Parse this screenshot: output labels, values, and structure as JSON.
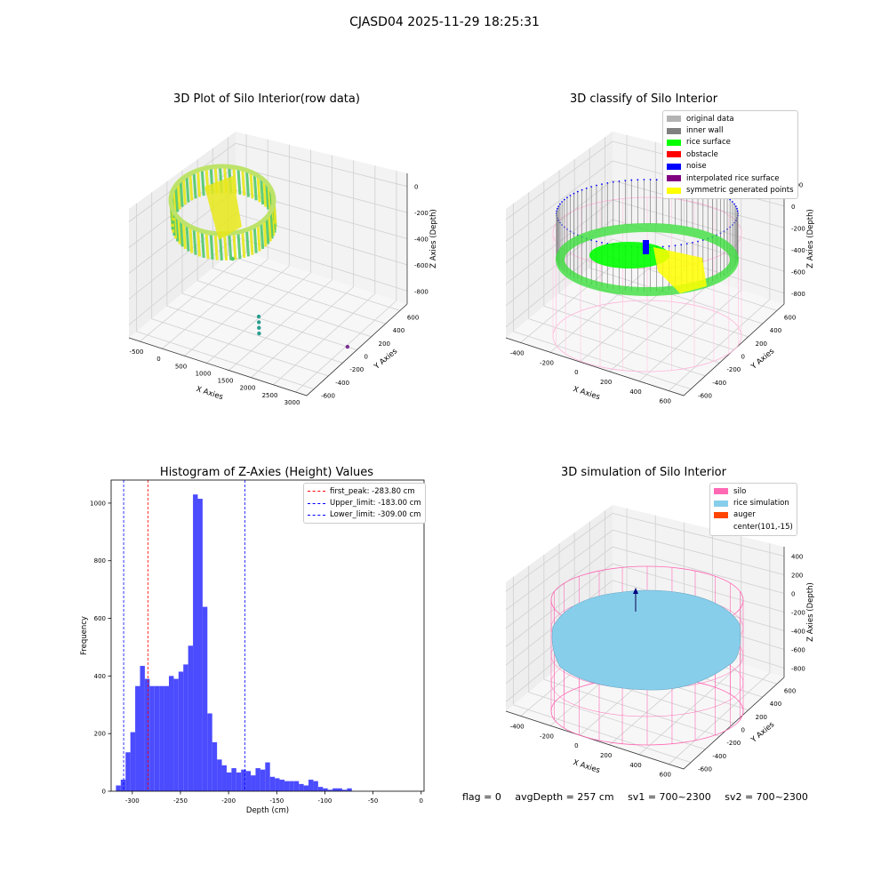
{
  "figure": {
    "suptitle": "CJASD04 2025-11-29 18:25:31"
  },
  "status": {
    "flag": "flag = 0",
    "avg_depth": "avgDepth = 257 cm",
    "sv1": "sv1 = 700~2300",
    "sv2": "sv2 = 700~2300"
  },
  "chart_data": [
    {
      "type": "scatter",
      "projection": "3d",
      "title": "3D Plot of Silo Interior(row data)",
      "xlabel": "X Axies",
      "ylabel": "Y Axies",
      "zlabel": "Z Axies (Depth)",
      "x_ticks": [
        "-500",
        "0",
        "500",
        "1000",
        "1500",
        "2000",
        "2500",
        "3000"
      ],
      "y_ticks": [
        "-600",
        "-400",
        "-200",
        "0",
        "200",
        "400",
        "600"
      ],
      "z_ticks": [
        "0",
        "-200",
        "-400",
        "-600",
        "-800"
      ],
      "grid": true,
      "colors": {
        "low": "#2a9d8f",
        "high": "#e8e81a",
        "outlier": "#7b3294",
        "mid": "#4fc96b"
      },
      "outliers": [
        {
          "x": 800,
          "y": 200,
          "z": -400
        },
        {
          "x": 1500,
          "y": 300,
          "z": -700
        },
        {
          "x": 1500,
          "y": 300,
          "z": -740
        },
        {
          "x": 1500,
          "y": 300,
          "z": -780
        },
        {
          "x": 1500,
          "y": 300,
          "z": -820
        },
        {
          "x": 2900,
          "y": 0,
          "z": -900
        }
      ]
    },
    {
      "type": "scatter",
      "projection": "3d",
      "title": "3D classify of Silo Interior",
      "xlabel": "X Axies",
      "ylabel": "Y Axies",
      "zlabel": "Z Axies (Depth)",
      "x_ticks": [
        "-400",
        "-200",
        "0",
        "200",
        "400",
        "600"
      ],
      "y_ticks": [
        "-600",
        "-400",
        "-200",
        "0",
        "200",
        "400",
        "600"
      ],
      "z_ticks": [
        "200",
        "0",
        "-200",
        "-400",
        "-600",
        "-800"
      ],
      "grid": true,
      "legend_position": "top-right",
      "legend": [
        {
          "label": "original data",
          "color": "#b3b3b3"
        },
        {
          "label": "inner wall",
          "color": "#808080"
        },
        {
          "label": "rice surface",
          "color": "#00ff00"
        },
        {
          "label": "obstacle",
          "color": "#ff0000"
        },
        {
          "label": "noise",
          "color": "#0000ff"
        },
        {
          "label": "interpolated rice surface",
          "color": "#800080"
        },
        {
          "label": "symmetric generated points",
          "color": "#ffff00"
        }
      ]
    },
    {
      "type": "bar",
      "title": "Histogram of Z-Axies (Height) Values",
      "xlabel": "Depth (cm)",
      "ylabel": "Frequency",
      "xlim": [
        -322,
        3
      ],
      "ylim": [
        0,
        1080
      ],
      "x_ticks": [
        -300,
        -250,
        -200,
        -150,
        -100,
        -50,
        0
      ],
      "y_ticks": [
        0,
        200,
        400,
        600,
        800,
        1000
      ],
      "bin_start": -317,
      "bin_width": 5,
      "color": "#4b4bff",
      "values": [
        20,
        40,
        135,
        205,
        365,
        435,
        390,
        365,
        365,
        365,
        365,
        400,
        390,
        415,
        440,
        505,
        1030,
        1015,
        640,
        270,
        170,
        110,
        90,
        65,
        80,
        65,
        75,
        70,
        55,
        80,
        75,
        100,
        50,
        45,
        40,
        35,
        35,
        35,
        25,
        20,
        40,
        35,
        15,
        10,
        5,
        10,
        10,
        5,
        10
      ],
      "legend_position": "top-right",
      "vlines": [
        {
          "label": "first_peak: -283.80 cm",
          "x": -283.8,
          "color": "#ff0000"
        },
        {
          "label": "Upper_limit: -183.00 cm",
          "x": -183.0,
          "color": "#0000ff"
        },
        {
          "label": "Lower_limit: -309.00 cm",
          "x": -309.0,
          "color": "#0000ff"
        }
      ]
    },
    {
      "type": "scatter",
      "projection": "3d",
      "title": "3D simulation of Silo Interior",
      "xlabel": "X Axies",
      "ylabel": "Y Axies",
      "zlabel": "Z Axies (Depth)",
      "x_ticks": [
        "-400",
        "-200",
        "0",
        "200",
        "400",
        "600"
      ],
      "y_ticks": [
        "-600",
        "-400",
        "-200",
        "0",
        "200",
        "400",
        "600"
      ],
      "z_ticks": [
        "400",
        "200",
        "0",
        "-200",
        "-400",
        "-600",
        "-800"
      ],
      "grid": true,
      "legend_position": "top-right",
      "legend": [
        {
          "label": "silo",
          "color": "#ff69b4"
        },
        {
          "label": "rice simulation",
          "color": "#87ceeb"
        },
        {
          "label": "auger",
          "color": "#ff4500"
        },
        {
          "label": "center(101,-15)",
          "color": ""
        }
      ]
    }
  ]
}
